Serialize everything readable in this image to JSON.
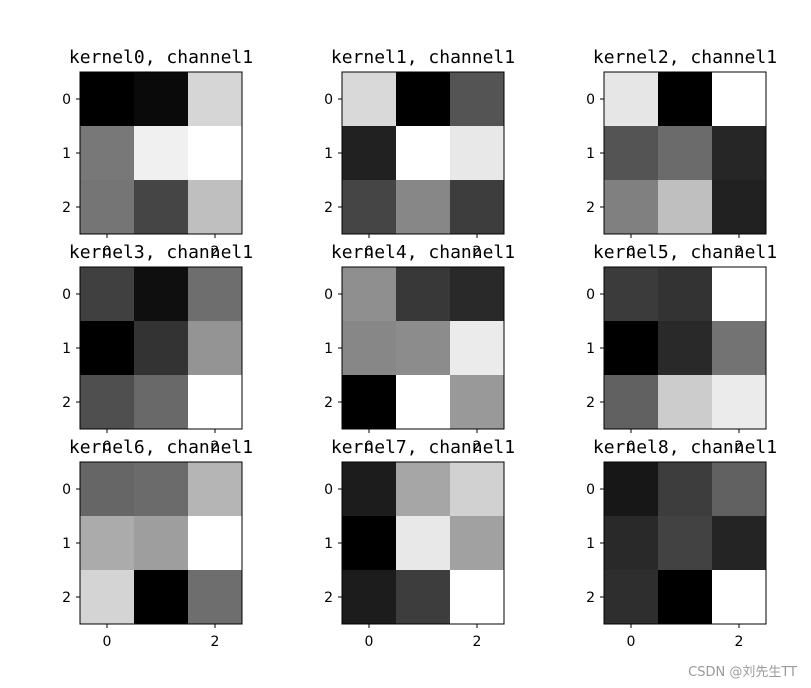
{
  "watermark": "CSDN @刘先生TT",
  "chart_data": [
    {
      "type": "heatmap",
      "title": "kernel0, channel1",
      "x_ticks": [
        "0",
        "2"
      ],
      "y_ticks": [
        "0",
        "1",
        "2"
      ],
      "colormap": "gray",
      "values": [
        [
          0.0,
          0.04,
          0.84
        ],
        [
          0.47,
          0.94,
          1.0
        ],
        [
          0.46,
          0.27,
          0.75
        ]
      ]
    },
    {
      "type": "heatmap",
      "title": "kernel1, channel1",
      "x_ticks": [
        "0",
        "2"
      ],
      "y_ticks": [
        "0",
        "1",
        "2"
      ],
      "colormap": "gray",
      "values": [
        [
          0.85,
          0.0,
          0.33
        ],
        [
          0.13,
          1.0,
          0.91
        ],
        [
          0.27,
          0.53,
          0.24
        ]
      ]
    },
    {
      "type": "heatmap",
      "title": "kernel2, channel1",
      "x_ticks": [
        "0",
        "2"
      ],
      "y_ticks": [
        "0",
        "1",
        "2"
      ],
      "colormap": "gray",
      "values": [
        [
          0.9,
          0.0,
          1.0
        ],
        [
          0.33,
          0.42,
          0.15
        ],
        [
          0.5,
          0.75,
          0.13
        ]
      ]
    },
    {
      "type": "heatmap",
      "title": "kernel3, channel1",
      "x_ticks": [
        "0",
        "2"
      ],
      "y_ticks": [
        "0",
        "1",
        "2"
      ],
      "colormap": "gray",
      "values": [
        [
          0.25,
          0.06,
          0.43
        ],
        [
          0.0,
          0.2,
          0.58
        ],
        [
          0.31,
          0.41,
          1.0
        ]
      ]
    },
    {
      "type": "heatmap",
      "title": "kernel4, channel1",
      "x_ticks": [
        "0",
        "2"
      ],
      "y_ticks": [
        "0",
        "1",
        "2"
      ],
      "colormap": "gray",
      "values": [
        [
          0.56,
          0.22,
          0.16
        ],
        [
          0.53,
          0.55,
          0.92
        ],
        [
          0.0,
          1.0,
          0.6
        ]
      ]
    },
    {
      "type": "heatmap",
      "title": "kernel5, channel1",
      "x_ticks": [
        "0",
        "2"
      ],
      "y_ticks": [
        "0",
        "1",
        "2"
      ],
      "colormap": "gray",
      "values": [
        [
          0.23,
          0.2,
          1.0
        ],
        [
          0.0,
          0.16,
          0.45
        ],
        [
          0.38,
          0.8,
          0.92
        ]
      ]
    },
    {
      "type": "heatmap",
      "title": "kernel6, channel1",
      "x_ticks": [
        "0",
        "2"
      ],
      "y_ticks": [
        "0",
        "1",
        "2"
      ],
      "colormap": "gray",
      "values": [
        [
          0.4,
          0.42,
          0.71
        ],
        [
          0.67,
          0.62,
          1.0
        ],
        [
          0.83,
          0.0,
          0.43
        ]
      ]
    },
    {
      "type": "heatmap",
      "title": "kernel7, channel1",
      "x_ticks": [
        "0",
        "2"
      ],
      "y_ticks": [
        "0",
        "1",
        "2"
      ],
      "colormap": "gray",
      "values": [
        [
          0.11,
          0.65,
          0.82
        ],
        [
          0.0,
          0.91,
          0.63
        ],
        [
          0.11,
          0.24,
          1.0
        ]
      ]
    },
    {
      "type": "heatmap",
      "title": "kernel8, channel1",
      "x_ticks": [
        "0",
        "2"
      ],
      "y_ticks": [
        "0",
        "1",
        "2"
      ],
      "colormap": "gray",
      "values": [
        [
          0.09,
          0.24,
          0.38
        ],
        [
          0.16,
          0.26,
          0.14
        ],
        [
          0.18,
          0.0,
          1.0
        ]
      ]
    }
  ]
}
